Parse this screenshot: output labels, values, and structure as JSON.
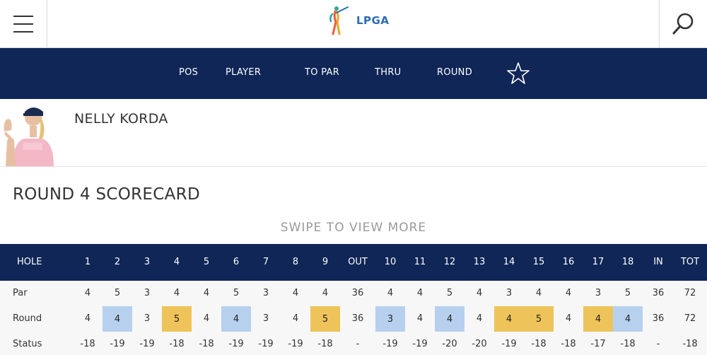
{
  "header": {
    "logo_text": "LPGA"
  },
  "nav": {
    "columns": [
      "POS",
      "PLAYER",
      "TO PAR",
      "THRU",
      "ROUND"
    ]
  },
  "player": {
    "name": "NELLY KORDA"
  },
  "scorecard": {
    "title": "ROUND 4 SCORECARD",
    "swipe_hint": "SWIPE TO VIEW MORE",
    "hole_label": "HOLE",
    "columns": [
      "1",
      "2",
      "3",
      "4",
      "5",
      "6",
      "7",
      "8",
      "9",
      "OUT",
      "10",
      "11",
      "12",
      "13",
      "14",
      "15",
      "16",
      "17",
      "18",
      "IN",
      "TOT"
    ],
    "rows": [
      {
        "label": "Par",
        "values": [
          "4",
          "5",
          "3",
          "4",
          "4",
          "5",
          "3",
          "4",
          "4",
          "36",
          "4",
          "4",
          "5",
          "4",
          "3",
          "4",
          "4",
          "3",
          "5",
          "36",
          "72"
        ]
      },
      {
        "label": "Round",
        "values": [
          "4",
          "4",
          "3",
          "5",
          "4",
          "4",
          "3",
          "4",
          "5",
          "36",
          "3",
          "4",
          "4",
          "4",
          "4",
          "5",
          "4",
          "4",
          "4",
          "36",
          "72"
        ],
        "highlight": [
          "",
          "blue",
          "",
          "gold",
          "",
          "blue",
          "",
          "",
          "gold",
          "",
          "blue",
          "",
          "blue",
          "",
          "gold",
          "gold",
          "",
          "gold",
          "blue",
          "",
          ""
        ]
      },
      {
        "label": "Status",
        "values": [
          "-18",
          "-19",
          "-19",
          "-18",
          "-18",
          "-19",
          "-19",
          "-19",
          "-18",
          "-",
          "-19",
          "-19",
          "-20",
          "-20",
          "-19",
          "-18",
          "-18",
          "-17",
          "-18",
          "-",
          "-18"
        ]
      }
    ],
    "colors": {
      "birdie": "#b7d0ee",
      "bogey": "#eec35a",
      "header_bg": "#0f2656"
    }
  }
}
